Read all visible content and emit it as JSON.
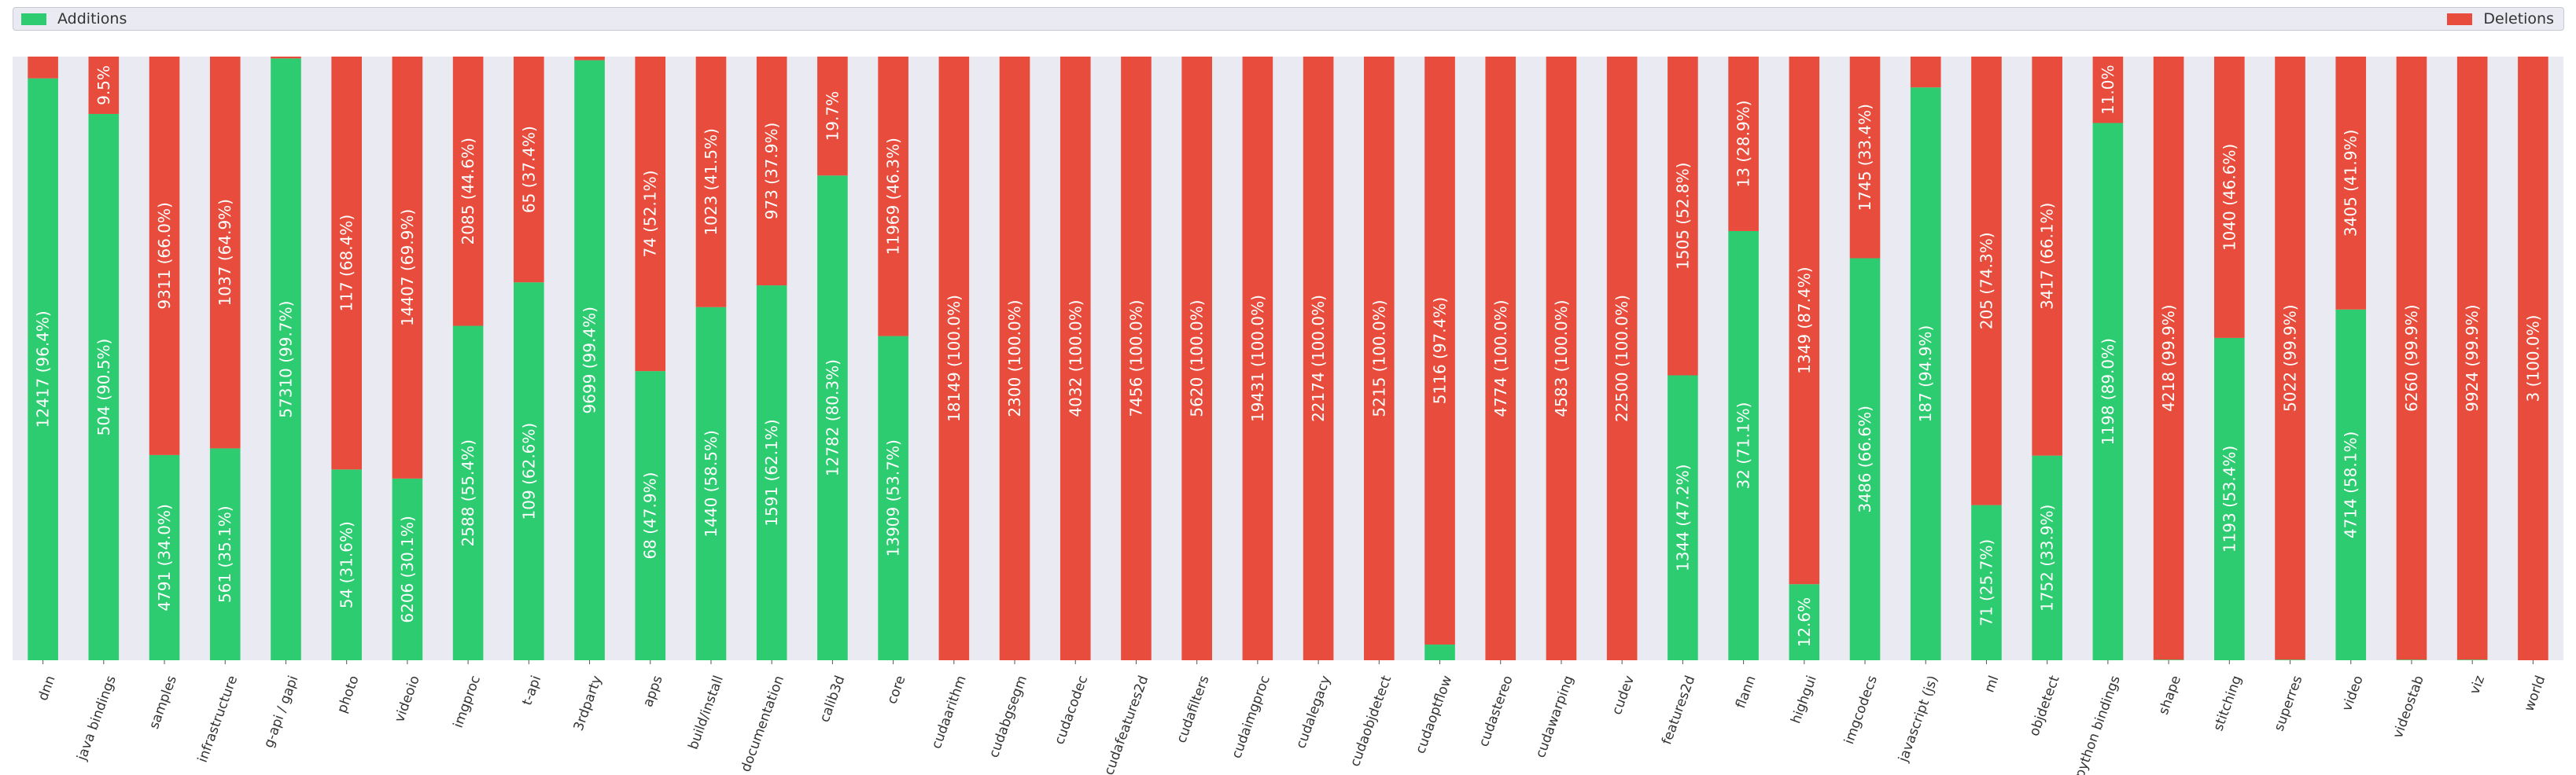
{
  "chart_data": {
    "type": "bar",
    "stacked": true,
    "normalized": true,
    "title": "",
    "xlabel": "",
    "ylabel": "",
    "ylim": [
      0,
      100
    ],
    "grid": false,
    "legend_placement": "top",
    "colors": {
      "additions": "#2ecc71",
      "deletions": "#e74c3c",
      "plot_bg": "#eaeaf2",
      "label_text": "#ffffff",
      "tick_text": "#333333"
    },
    "series": [
      {
        "name": "Additions",
        "color": "#2ecc71"
      },
      {
        "name": "Deletions",
        "color": "#e74c3c"
      }
    ],
    "categories": [
      {
        "name": "dnn",
        "add": {
          "value": 12417,
          "pct": 96.4,
          "label": "12417 (96.4%)"
        },
        "del": {
          "value": null,
          "pct": 3.6,
          "label": ""
        }
      },
      {
        "name": "java bindings",
        "add": {
          "value": 504,
          "pct": 90.5,
          "label": "504 (90.5%)"
        },
        "del": {
          "value": null,
          "pct": 9.5,
          "label": "9.5%"
        }
      },
      {
        "name": "samples",
        "add": {
          "value": 4791,
          "pct": 34.0,
          "label": "4791 (34.0%)"
        },
        "del": {
          "value": 9311,
          "pct": 66.0,
          "label": "9311 (66.0%)"
        }
      },
      {
        "name": "infrastructure",
        "add": {
          "value": 561,
          "pct": 35.1,
          "label": "561 (35.1%)"
        },
        "del": {
          "value": 1037,
          "pct": 64.9,
          "label": "1037 (64.9%)"
        }
      },
      {
        "name": "g-api / gapi",
        "add": {
          "value": 57310,
          "pct": 99.7,
          "label": "57310 (99.7%)"
        },
        "del": {
          "value": null,
          "pct": 0.3,
          "label": ""
        }
      },
      {
        "name": "photo",
        "add": {
          "value": 54,
          "pct": 31.6,
          "label": "54 (31.6%)"
        },
        "del": {
          "value": 117,
          "pct": 68.4,
          "label": "117 (68.4%)"
        }
      },
      {
        "name": "videoio",
        "add": {
          "value": 6206,
          "pct": 30.1,
          "label": "6206 (30.1%)"
        },
        "del": {
          "value": 14407,
          "pct": 69.9,
          "label": "14407 (69.9%)"
        }
      },
      {
        "name": "imgproc",
        "add": {
          "value": 2588,
          "pct": 55.4,
          "label": "2588 (55.4%)"
        },
        "del": {
          "value": 2085,
          "pct": 44.6,
          "label": "2085 (44.6%)"
        }
      },
      {
        "name": "t-api",
        "add": {
          "value": 109,
          "pct": 62.6,
          "label": "109 (62.6%)"
        },
        "del": {
          "value": 65,
          "pct": 37.4,
          "label": "65 (37.4%)"
        }
      },
      {
        "name": "3rdparty",
        "add": {
          "value": 9699,
          "pct": 99.4,
          "label": "9699 (99.4%)"
        },
        "del": {
          "value": null,
          "pct": 0.6,
          "label": ""
        }
      },
      {
        "name": "apps",
        "add": {
          "value": 68,
          "pct": 47.9,
          "label": "68 (47.9%)"
        },
        "del": {
          "value": 74,
          "pct": 52.1,
          "label": "74 (52.1%)"
        }
      },
      {
        "name": "build/install",
        "add": {
          "value": 1440,
          "pct": 58.5,
          "label": "1440 (58.5%)"
        },
        "del": {
          "value": 1023,
          "pct": 41.5,
          "label": "1023 (41.5%)"
        }
      },
      {
        "name": "documentation",
        "add": {
          "value": 1591,
          "pct": 62.1,
          "label": "1591 (62.1%)"
        },
        "del": {
          "value": 973,
          "pct": 37.9,
          "label": "973 (37.9%)"
        }
      },
      {
        "name": "calib3d",
        "add": {
          "value": 12782,
          "pct": 80.3,
          "label": "12782 (80.3%)"
        },
        "del": {
          "value": null,
          "pct": 19.7,
          "label": "19.7%"
        }
      },
      {
        "name": "core",
        "add": {
          "value": 13909,
          "pct": 53.7,
          "label": "13909 (53.7%)"
        },
        "del": {
          "value": 11969,
          "pct": 46.3,
          "label": "11969 (46.3%)"
        }
      },
      {
        "name": "cudaarithm",
        "add": {
          "value": null,
          "pct": 0.0,
          "label": ""
        },
        "del": {
          "value": 18149,
          "pct": 100.0,
          "label": "18149 (100.0%)"
        }
      },
      {
        "name": "cudabgsegm",
        "add": {
          "value": null,
          "pct": 0.0,
          "label": ""
        },
        "del": {
          "value": 2300,
          "pct": 100.0,
          "label": "2300 (100.0%)"
        }
      },
      {
        "name": "cudacodec",
        "add": {
          "value": null,
          "pct": 0.0,
          "label": ""
        },
        "del": {
          "value": 4032,
          "pct": 100.0,
          "label": "4032 (100.0%)"
        }
      },
      {
        "name": "cudafeatures2d",
        "add": {
          "value": null,
          "pct": 0.0,
          "label": ""
        },
        "del": {
          "value": 7456,
          "pct": 100.0,
          "label": "7456 (100.0%)"
        }
      },
      {
        "name": "cudafilters",
        "add": {
          "value": null,
          "pct": 0.0,
          "label": ""
        },
        "del": {
          "value": 5620,
          "pct": 100.0,
          "label": "5620 (100.0%)"
        }
      },
      {
        "name": "cudaimgproc",
        "add": {
          "value": null,
          "pct": 0.0,
          "label": ""
        },
        "del": {
          "value": 19431,
          "pct": 100.0,
          "label": "19431 (100.0%)"
        }
      },
      {
        "name": "cudalegacy",
        "add": {
          "value": null,
          "pct": 0.0,
          "label": ""
        },
        "del": {
          "value": 22174,
          "pct": 100.0,
          "label": "22174 (100.0%)"
        }
      },
      {
        "name": "cudaobjdetect",
        "add": {
          "value": null,
          "pct": 0.0,
          "label": ""
        },
        "del": {
          "value": 5215,
          "pct": 100.0,
          "label": "5215 (100.0%)"
        }
      },
      {
        "name": "cudaoptflow",
        "add": {
          "value": null,
          "pct": 2.6,
          "label": ""
        },
        "del": {
          "value": 5116,
          "pct": 97.4,
          "label": "5116 (97.4%)"
        }
      },
      {
        "name": "cudastereo",
        "add": {
          "value": null,
          "pct": 0.0,
          "label": ""
        },
        "del": {
          "value": 4774,
          "pct": 100.0,
          "label": "4774 (100.0%)"
        }
      },
      {
        "name": "cudawarping",
        "add": {
          "value": null,
          "pct": 0.0,
          "label": ""
        },
        "del": {
          "value": 4583,
          "pct": 100.0,
          "label": "4583 (100.0%)"
        }
      },
      {
        "name": "cudev",
        "add": {
          "value": null,
          "pct": 0.0,
          "label": ""
        },
        "del": {
          "value": 22500,
          "pct": 100.0,
          "label": "22500 (100.0%)"
        }
      },
      {
        "name": "features2d",
        "add": {
          "value": 1344,
          "pct": 47.2,
          "label": "1344 (47.2%)"
        },
        "del": {
          "value": 1505,
          "pct": 52.8,
          "label": "1505 (52.8%)"
        }
      },
      {
        "name": "flann",
        "add": {
          "value": 32,
          "pct": 71.1,
          "label": "32 (71.1%)"
        },
        "del": {
          "value": 13,
          "pct": 28.9,
          "label": "13 (28.9%)"
        }
      },
      {
        "name": "highgui",
        "add": {
          "value": null,
          "pct": 12.6,
          "label": "12.6%"
        },
        "del": {
          "value": 1349,
          "pct": 87.4,
          "label": "1349 (87.4%)"
        }
      },
      {
        "name": "imgcodecs",
        "add": {
          "value": 3486,
          "pct": 66.6,
          "label": "3486 (66.6%)"
        },
        "del": {
          "value": 1745,
          "pct": 33.4,
          "label": "1745 (33.4%)"
        }
      },
      {
        "name": "javascript (js)",
        "add": {
          "value": 187,
          "pct": 94.9,
          "label": "187 (94.9%)"
        },
        "del": {
          "value": null,
          "pct": 5.1,
          "label": ""
        }
      },
      {
        "name": "ml",
        "add": {
          "value": 71,
          "pct": 25.7,
          "label": "71 (25.7%)"
        },
        "del": {
          "value": 205,
          "pct": 74.3,
          "label": "205 (74.3%)"
        }
      },
      {
        "name": "objdetect",
        "add": {
          "value": 1752,
          "pct": 33.9,
          "label": "1752 (33.9%)"
        },
        "del": {
          "value": 3417,
          "pct": 66.1,
          "label": "3417 (66.1%)"
        }
      },
      {
        "name": "python bindings",
        "add": {
          "value": 1198,
          "pct": 89.0,
          "label": "1198 (89.0%)"
        },
        "del": {
          "value": null,
          "pct": 11.0,
          "label": "11.0%"
        }
      },
      {
        "name": "shape",
        "add": {
          "value": null,
          "pct": 0.1,
          "label": ""
        },
        "del": {
          "value": 4218,
          "pct": 99.9,
          "label": "4218 (99.9%)"
        }
      },
      {
        "name": "stitching",
        "add": {
          "value": 1193,
          "pct": 53.4,
          "label": "1193 (53.4%)"
        },
        "del": {
          "value": 1040,
          "pct": 46.6,
          "label": "1040 (46.6%)"
        }
      },
      {
        "name": "superres",
        "add": {
          "value": null,
          "pct": 0.1,
          "label": ""
        },
        "del": {
          "value": 5022,
          "pct": 99.9,
          "label": "5022 (99.9%)"
        }
      },
      {
        "name": "video",
        "add": {
          "value": 4714,
          "pct": 58.1,
          "label": "4714 (58.1%)"
        },
        "del": {
          "value": 3405,
          "pct": 41.9,
          "label": "3405 (41.9%)"
        }
      },
      {
        "name": "videostab",
        "add": {
          "value": null,
          "pct": 0.1,
          "label": ""
        },
        "del": {
          "value": 6260,
          "pct": 99.9,
          "label": "6260 (99.9%)"
        }
      },
      {
        "name": "viz",
        "add": {
          "value": null,
          "pct": 0.1,
          "label": ""
        },
        "del": {
          "value": 9924,
          "pct": 99.9,
          "label": "9924 (99.9%)"
        }
      },
      {
        "name": "world",
        "add": {
          "value": null,
          "pct": 0.0,
          "label": ""
        },
        "del": {
          "value": 3,
          "pct": 100.0,
          "label": "3 (100.0%)"
        }
      }
    ]
  },
  "legend": {
    "additions_label": "Additions",
    "deletions_label": "Deletions"
  }
}
